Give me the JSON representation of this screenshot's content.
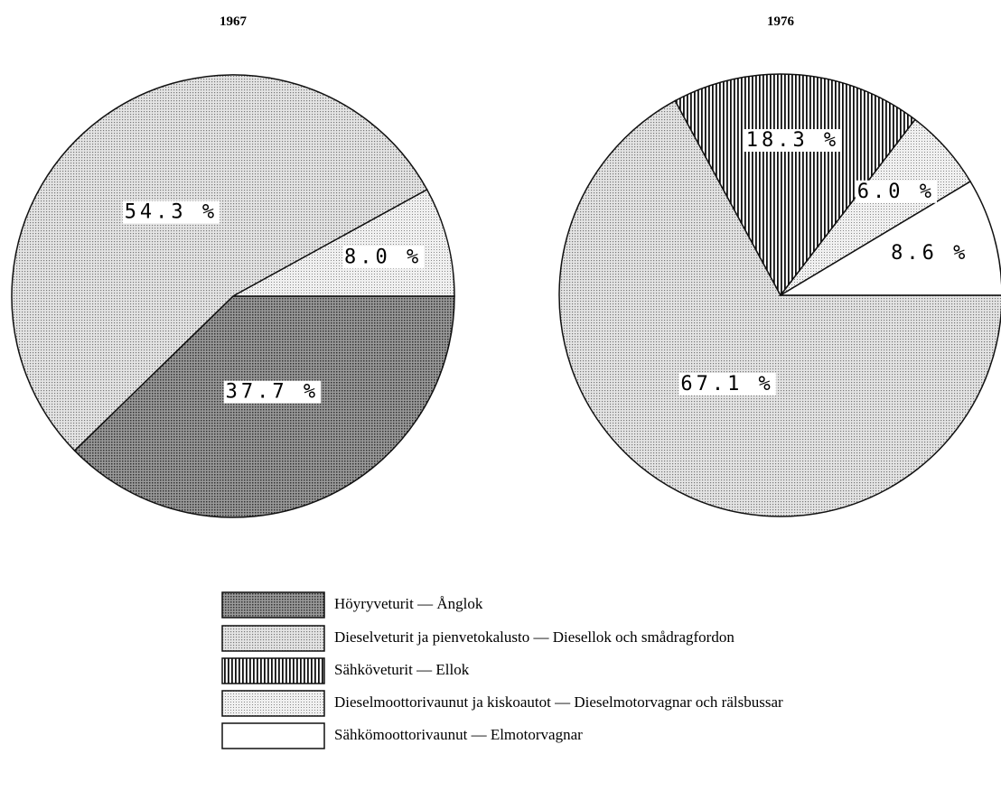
{
  "chart_data": [
    {
      "type": "pie",
      "title": "1967",
      "values": [
        37.7,
        54.3,
        null,
        8.0,
        null
      ],
      "value_labels": [
        "37.7 %",
        "54.3 %",
        null,
        "8.0 %",
        null
      ]
    },
    {
      "type": "pie",
      "title": "1976",
      "values": [
        null,
        67.1,
        18.3,
        6.0,
        8.6
      ],
      "value_labels": [
        null,
        "67.1 %",
        "18.3 %",
        "6.0 %",
        "8.6 %"
      ]
    }
  ],
  "legend": {
    "categories": [
      "Höyryveturit — Ånglok",
      "Dieselveturit ja pienvetokalusto — Diesellok och smådragfordon",
      "Sähköveturit — Ellok",
      "Dieselmoottorivaunut ja kiskoautot — Dieselmotorvagnar och rälsbussar",
      "Sähkömoottorivaunut — Elmotorvagnar"
    ],
    "patterns": [
      "dense-dots",
      "dots",
      "vertical-lines",
      "light-dots",
      "none"
    ]
  }
}
